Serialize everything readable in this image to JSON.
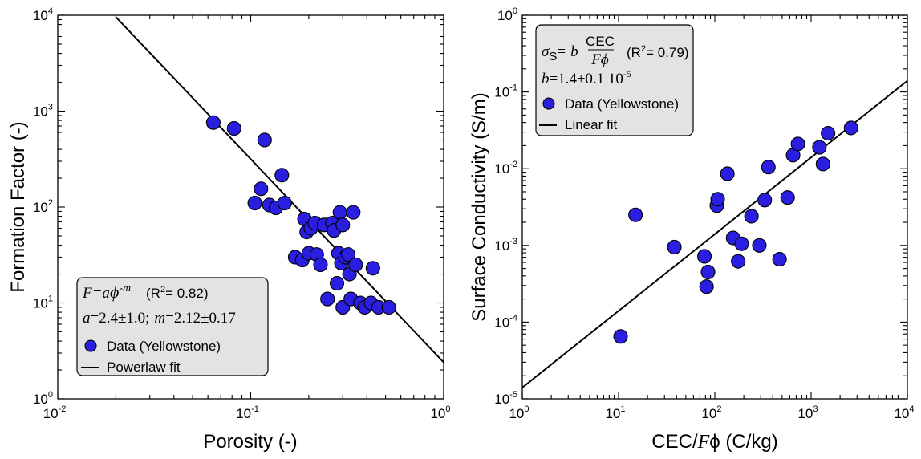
{
  "chart_data": [
    {
      "type": "scatter",
      "xscale": "log",
      "yscale": "log",
      "xlim": [
        0.01,
        1
      ],
      "ylim": [
        1,
        10000
      ],
      "xlabel": "Porosity  (-)",
      "ylabel": "Formation  Factor  (-)",
      "xticks": [
        {
          "base": "10",
          "exp": "-2"
        },
        {
          "base": "10",
          "exp": "-1"
        },
        {
          "base": "10",
          "exp": "0"
        }
      ],
      "yticks": [
        {
          "base": "10",
          "exp": "0"
        },
        {
          "base": "10",
          "exp": "1"
        },
        {
          "base": "10",
          "exp": "2"
        },
        {
          "base": "10",
          "exp": "3"
        },
        {
          "base": "10",
          "exp": "4"
        }
      ],
      "legend": {
        "placement": "bottom-left",
        "eq_F": "F=a",
        "eq_phi": "ϕ",
        "eq_exp": "-m",
        "r2_pre": "(R",
        "r2_sup": "2",
        "r2_post": "= 0.82)",
        "params_a": "a",
        "params_a_val": "=2.4±1.0;",
        "params_m": "m",
        "params_m_val": "=2.12±0.17",
        "data_label": "Data  (Yellowstone)",
        "fit_label": "Powerlaw  fit"
      },
      "fit": {
        "a": 2.4,
        "m": 2.12
      },
      "points": [
        [
          0.064,
          760
        ],
        [
          0.082,
          660
        ],
        [
          0.105,
          110
        ],
        [
          0.113,
          155
        ],
        [
          0.118,
          500
        ],
        [
          0.125,
          105
        ],
        [
          0.135,
          98
        ],
        [
          0.145,
          215
        ],
        [
          0.15,
          110
        ],
        [
          0.17,
          30
        ],
        [
          0.185,
          28
        ],
        [
          0.19,
          75
        ],
        [
          0.195,
          55
        ],
        [
          0.2,
          33
        ],
        [
          0.205,
          60
        ],
        [
          0.215,
          68
        ],
        [
          0.22,
          32
        ],
        [
          0.23,
          25
        ],
        [
          0.24,
          65
        ],
        [
          0.25,
          11
        ],
        [
          0.265,
          68
        ],
        [
          0.27,
          57
        ],
        [
          0.28,
          16
        ],
        [
          0.285,
          33
        ],
        [
          0.29,
          88
        ],
        [
          0.295,
          26
        ],
        [
          0.3,
          65
        ],
        [
          0.3,
          9
        ],
        [
          0.31,
          30
        ],
        [
          0.32,
          32
        ],
        [
          0.325,
          20
        ],
        [
          0.33,
          11
        ],
        [
          0.34,
          88
        ],
        [
          0.35,
          25
        ],
        [
          0.37,
          10
        ],
        [
          0.39,
          9
        ],
        [
          0.42,
          10
        ],
        [
          0.43,
          23
        ],
        [
          0.46,
          9
        ],
        [
          0.52,
          9
        ]
      ]
    },
    {
      "type": "scatter",
      "xscale": "log",
      "yscale": "log",
      "xlim": [
        1,
        10000
      ],
      "ylim": [
        1e-05,
        1
      ],
      "xlabel_pre": "CEC/",
      "xlabel_F": "F",
      "xlabel_phi": "ϕ",
      "xlabel_post": " (C/kg)",
      "ylabel": "Surface  Conductivity  (S/m)",
      "xticks": [
        {
          "base": "10",
          "exp": "0"
        },
        {
          "base": "10",
          "exp": "1"
        },
        {
          "base": "10",
          "exp": "2"
        },
        {
          "base": "10",
          "exp": "3"
        },
        {
          "base": "10",
          "exp": "4"
        }
      ],
      "yticks": [
        {
          "base": "10",
          "exp": "-5"
        },
        {
          "base": "10",
          "exp": "-4"
        },
        {
          "base": "10",
          "exp": "-3"
        },
        {
          "base": "10",
          "exp": "-2"
        },
        {
          "base": "10",
          "exp": "-1"
        },
        {
          "base": "10",
          "exp": "0"
        }
      ],
      "legend": {
        "placement": "top-left",
        "eq_sigma": "σ",
        "eq_sub": "S",
        "eq_eq": "=",
        "eq_b": "b",
        "frac_num": "CEC",
        "frac_den_F": "F",
        "frac_den_phi": "ϕ",
        "r2_pre": "(R",
        "r2_sup": "2",
        "r2_post": "= 0.79)",
        "params_b": "b",
        "params_b_val": "=1.4±0.1  10",
        "params_b_exp": "-5",
        "data_label": "Data  (Yellowstone)",
        "fit_label": "Linear  fit"
      },
      "fit": {
        "b": 1.4e-05
      },
      "points": [
        [
          10.5,
          6.5e-05
        ],
        [
          15,
          0.0025
        ],
        [
          38,
          0.00095
        ],
        [
          78,
          0.00072
        ],
        [
          82,
          0.00029
        ],
        [
          85,
          0.00045
        ],
        [
          105,
          0.0033
        ],
        [
          107,
          0.004
        ],
        [
          135,
          0.0086
        ],
        [
          155,
          0.00125
        ],
        [
          175,
          0.00062
        ],
        [
          190,
          0.00105
        ],
        [
          240,
          0.0024
        ],
        [
          290,
          0.001
        ],
        [
          330,
          0.0039
        ],
        [
          360,
          0.0105
        ],
        [
          470,
          0.00066
        ],
        [
          570,
          0.0042
        ],
        [
          650,
          0.015
        ],
        [
          730,
          0.021
        ],
        [
          1220,
          0.019
        ],
        [
          1330,
          0.0115
        ],
        [
          1500,
          0.029
        ],
        [
          2600,
          0.034
        ]
      ]
    }
  ]
}
